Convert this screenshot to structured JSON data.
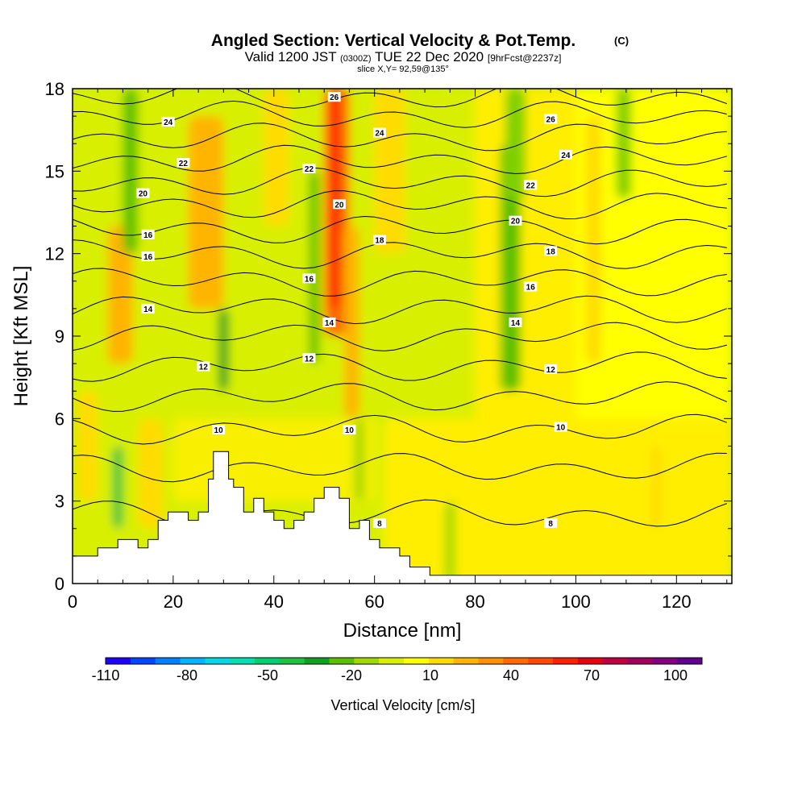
{
  "title": {
    "main": "Angled Section: Vertical Velocity & Pot.Temp.",
    "main_unit": "(C)",
    "valid_prefix": "Valid 1200 JST",
    "valid_z": "(0300Z)",
    "valid_date": "TUE 22 Dec 2020",
    "valid_fcst": "[9hrFcst@2237z]",
    "slice": "slice X,Y= 92,59@135°"
  },
  "chart_data": {
    "type": "heatmap",
    "xlabel": "Distance [nm]",
    "ylabel": "Height [Kft MSL]",
    "xlim": [
      0,
      131
    ],
    "ylim": [
      0,
      18
    ],
    "x_ticks": [
      "0",
      "20",
      "40",
      "60",
      "80",
      "100",
      "120"
    ],
    "y_ticks": [
      "0",
      "3",
      "6",
      "9",
      "12",
      "15",
      "18"
    ],
    "colorbar": {
      "label": "Vertical Velocity [cm/s]",
      "tick_labels": [
        "-110",
        "-80",
        "-50",
        "-20",
        "10",
        "40",
        "70",
        "100"
      ],
      "colors": [
        "#1e00ff",
        "#0046ff",
        "#0080ff",
        "#00b4ff",
        "#00d8e8",
        "#00e0b0",
        "#00d070",
        "#20c040",
        "#10a020",
        "#5cc000",
        "#a0d800",
        "#d8f000",
        "#ffff00",
        "#ffdc00",
        "#ffb400",
        "#ff9000",
        "#ff6a00",
        "#ff4a00",
        "#ff2000",
        "#e60012",
        "#c00040",
        "#a00060",
        "#800080",
        "#600090"
      ]
    },
    "theta_contour_labels": [
      "8",
      "10",
      "12",
      "14",
      "16",
      "18",
      "20",
      "22",
      "24",
      "26"
    ],
    "terrain_nm_kft": [
      [
        0,
        1.0
      ],
      [
        5,
        1.0
      ],
      [
        5,
        1.3
      ],
      [
        9,
        1.3
      ],
      [
        9,
        1.6
      ],
      [
        13,
        1.6
      ],
      [
        13,
        1.3
      ],
      [
        15,
        1.3
      ],
      [
        15,
        1.6
      ],
      [
        17,
        1.6
      ],
      [
        17,
        2.3
      ],
      [
        19,
        2.3
      ],
      [
        19,
        2.6
      ],
      [
        23,
        2.6
      ],
      [
        23,
        2.3
      ],
      [
        25,
        2.3
      ],
      [
        25,
        2.6
      ],
      [
        27,
        2.6
      ],
      [
        27,
        3.8
      ],
      [
        28,
        3.8
      ],
      [
        28,
        4.8
      ],
      [
        31,
        4.8
      ],
      [
        31,
        3.8
      ],
      [
        32,
        3.8
      ],
      [
        32,
        3.5
      ],
      [
        34,
        3.5
      ],
      [
        34,
        2.6
      ],
      [
        36,
        2.6
      ],
      [
        36,
        3.1
      ],
      [
        38,
        3.1
      ],
      [
        38,
        2.6
      ],
      [
        40,
        2.6
      ],
      [
        40,
        2.3
      ],
      [
        42,
        2.3
      ],
      [
        42,
        2.0
      ],
      [
        44,
        2.0
      ],
      [
        44,
        2.3
      ],
      [
        46,
        2.3
      ],
      [
        46,
        2.6
      ],
      [
        48,
        2.6
      ],
      [
        48,
        3.1
      ],
      [
        50,
        3.1
      ],
      [
        50,
        3.5
      ],
      [
        53,
        3.5
      ],
      [
        53,
        3.1
      ],
      [
        55,
        3.1
      ],
      [
        55,
        2.0
      ],
      [
        57,
        2.0
      ],
      [
        57,
        2.3
      ],
      [
        59,
        2.3
      ],
      [
        59,
        1.6
      ],
      [
        61,
        1.6
      ],
      [
        61,
        1.3
      ],
      [
        65,
        1.3
      ],
      [
        65,
        1.0
      ],
      [
        67,
        1.0
      ],
      [
        67,
        0.6
      ],
      [
        71,
        0.6
      ],
      [
        71,
        0.3
      ],
      [
        131,
        0.3
      ],
      [
        131,
        0
      ],
      [
        0,
        0
      ]
    ]
  }
}
